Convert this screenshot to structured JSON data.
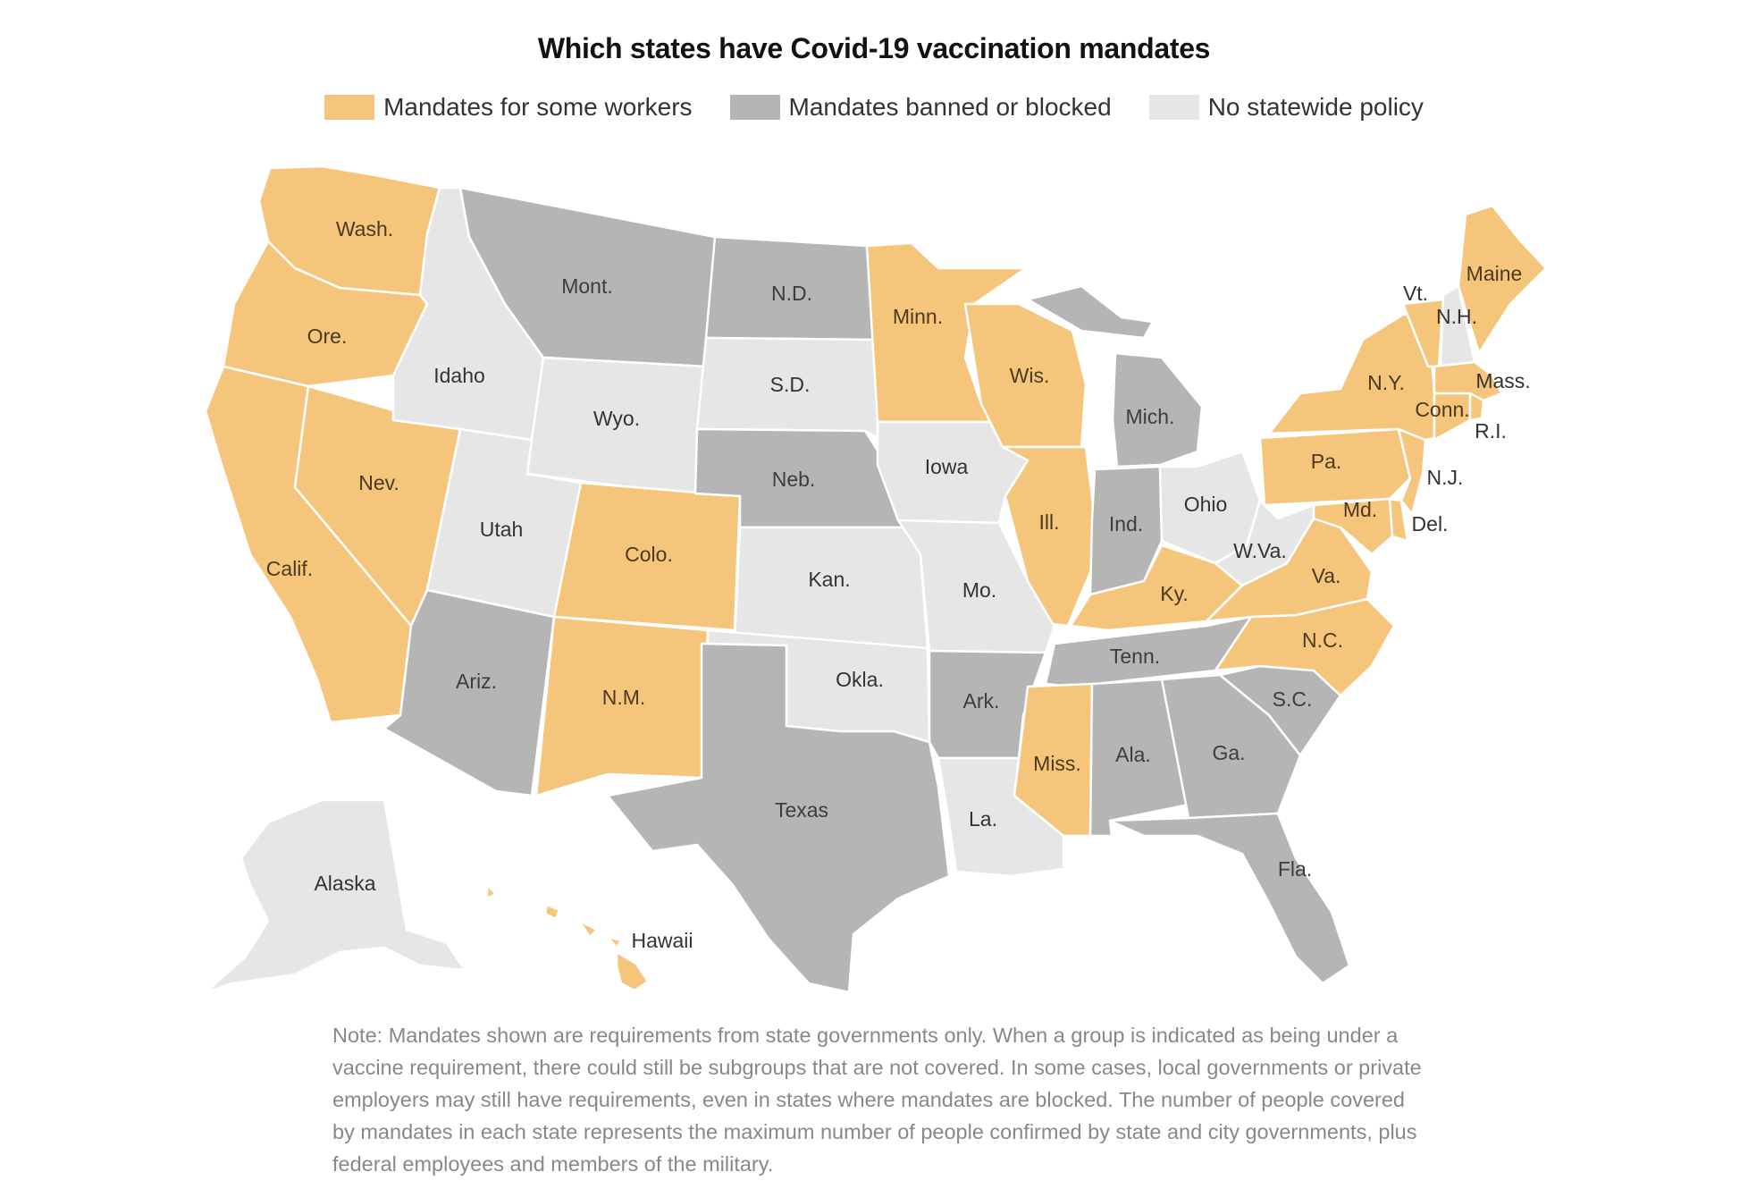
{
  "title": "Which states have Covid-19 vaccination mandates",
  "legend": [
    {
      "label": "Mandates for some workers",
      "color": "#f5c57c"
    },
    {
      "label": "Mandates banned or blocked",
      "color": "#b5b5b5"
    },
    {
      "label": "No statewide policy",
      "color": "#e6e6e6"
    }
  ],
  "colors": {
    "orange": "#f5c57c",
    "gray": "#b5b5b5",
    "light": "#e6e6e6"
  },
  "states": [
    {
      "id": "wa",
      "label": "Wash.",
      "category": "orange"
    },
    {
      "id": "or",
      "label": "Ore.",
      "category": "orange"
    },
    {
      "id": "ca",
      "label": "Calif.",
      "category": "orange"
    },
    {
      "id": "nv",
      "label": "Nev.",
      "category": "orange"
    },
    {
      "id": "id",
      "label": "Idaho",
      "category": "light"
    },
    {
      "id": "mt",
      "label": "Mont.",
      "category": "gray"
    },
    {
      "id": "wy",
      "label": "Wyo.",
      "category": "light"
    },
    {
      "id": "ut",
      "label": "Utah",
      "category": "light"
    },
    {
      "id": "co",
      "label": "Colo.",
      "category": "orange"
    },
    {
      "id": "az",
      "label": "Ariz.",
      "category": "gray"
    },
    {
      "id": "nm",
      "label": "N.M.",
      "category": "orange"
    },
    {
      "id": "nd",
      "label": "N.D.",
      "category": "gray"
    },
    {
      "id": "sd",
      "label": "S.D.",
      "category": "light"
    },
    {
      "id": "ne",
      "label": "Neb.",
      "category": "gray"
    },
    {
      "id": "ks",
      "label": "Kan.",
      "category": "light"
    },
    {
      "id": "ok",
      "label": "Okla.",
      "category": "light"
    },
    {
      "id": "tx",
      "label": "Texas",
      "category": "gray"
    },
    {
      "id": "mn",
      "label": "Minn.",
      "category": "orange"
    },
    {
      "id": "ia",
      "label": "Iowa",
      "category": "light"
    },
    {
      "id": "mo",
      "label": "Mo.",
      "category": "light"
    },
    {
      "id": "ar",
      "label": "Ark.",
      "category": "gray"
    },
    {
      "id": "la",
      "label": "La.",
      "category": "light"
    },
    {
      "id": "wi",
      "label": "Wis.",
      "category": "orange"
    },
    {
      "id": "il",
      "label": "Ill.",
      "category": "orange"
    },
    {
      "id": "mi",
      "label": "Mich.",
      "category": "gray"
    },
    {
      "id": "in",
      "label": "Ind.",
      "category": "gray"
    },
    {
      "id": "oh",
      "label": "Ohio",
      "category": "light"
    },
    {
      "id": "ky",
      "label": "Ky.",
      "category": "orange"
    },
    {
      "id": "tn",
      "label": "Tenn.",
      "category": "gray"
    },
    {
      "id": "ms",
      "label": "Miss.",
      "category": "orange"
    },
    {
      "id": "al",
      "label": "Ala.",
      "category": "gray"
    },
    {
      "id": "ga",
      "label": "Ga.",
      "category": "gray"
    },
    {
      "id": "fl",
      "label": "Fla.",
      "category": "gray"
    },
    {
      "id": "sc",
      "label": "S.C.",
      "category": "gray"
    },
    {
      "id": "nc",
      "label": "N.C.",
      "category": "orange"
    },
    {
      "id": "va",
      "label": "Va.",
      "category": "orange"
    },
    {
      "id": "wv",
      "label": "W.Va.",
      "category": "light"
    },
    {
      "id": "md",
      "label": "Md.",
      "category": "orange"
    },
    {
      "id": "de",
      "label": "Del.",
      "category": "orange"
    },
    {
      "id": "pa",
      "label": "Pa.",
      "category": "orange"
    },
    {
      "id": "nj",
      "label": "N.J.",
      "category": "orange"
    },
    {
      "id": "ny",
      "label": "N.Y.",
      "category": "orange"
    },
    {
      "id": "ct",
      "label": "Conn.",
      "category": "orange"
    },
    {
      "id": "ri",
      "label": "R.I.",
      "category": "orange"
    },
    {
      "id": "ma",
      "label": "Mass.",
      "category": "orange"
    },
    {
      "id": "vt",
      "label": "Vt.",
      "category": "orange"
    },
    {
      "id": "nh",
      "label": "N.H.",
      "category": "light"
    },
    {
      "id": "me",
      "label": "Maine",
      "category": "orange"
    },
    {
      "id": "ak",
      "label": "Alaska",
      "category": "light"
    },
    {
      "id": "hi",
      "label": "Hawaii",
      "category": "orange"
    }
  ],
  "note": "Note: Mandates shown are requirements from state governments only. When a group is indicated as being under a vaccine requirement, there could still be subgroups that are not covered. In some cases, local governments or private employers may still have requirements, even in states where mandates are blocked. The number of people covered by mandates in each state represents the maximum number of people confirmed by state and city governments, plus federal employees and members of the military."
}
